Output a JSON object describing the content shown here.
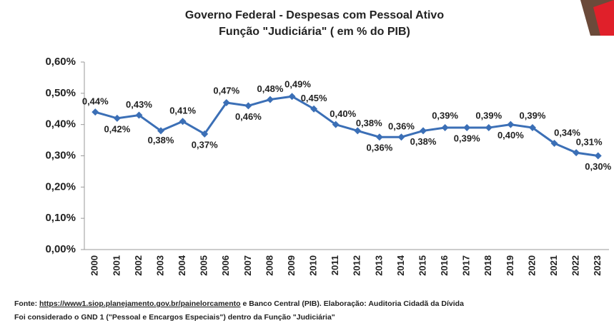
{
  "chart_data": {
    "type": "line",
    "title": "Governo Federal - Despesas com Pessoal Ativo",
    "subtitle": "Função \"Judiciária\" ( em % do PIB)",
    "categories": [
      "2000",
      "2001",
      "2002",
      "2003",
      "2004",
      "2005",
      "2006",
      "2007",
      "2008",
      "2009",
      "2010",
      "2011",
      "2012",
      "2013",
      "2014",
      "2015",
      "2016",
      "2017",
      "2018",
      "2019",
      "2020",
      "2021",
      "2022",
      "2023"
    ],
    "series": [
      {
        "color": "#3b6fb6",
        "values": [
          0.44,
          0.42,
          0.43,
          0.38,
          0.41,
          0.37,
          0.47,
          0.46,
          0.48,
          0.49,
          0.45,
          0.4,
          0.38,
          0.36,
          0.36,
          0.38,
          0.39,
          0.39,
          0.39,
          0.4,
          0.39,
          0.34,
          0.31,
          0.3
        ],
        "value_labels": [
          "0,44%",
          "0,42%",
          "0,43%",
          "0,38%",
          "0,41%",
          "0,37%",
          "0,47%",
          "0,46%",
          "0,48%",
          "0,49%",
          "0,45%",
          "0,40%",
          "0,38%",
          "0,36%",
          "0,36%",
          "0,38%",
          "0,39%",
          "0,39%",
          "0,39%",
          "0,40%",
          "0,39%",
          "0,34%",
          "0,31%",
          "0,30%"
        ]
      }
    ],
    "ylim": [
      0,
      0.6
    ],
    "yticks": [
      {
        "value": 0,
        "label": "0,00%"
      },
      {
        "value": 0.1,
        "label": "0,10%"
      },
      {
        "value": 0.2,
        "label": "0,20%"
      },
      {
        "value": 0.3,
        "label": "0,30%"
      },
      {
        "value": 0.4,
        "label": "0,40%"
      },
      {
        "value": 0.5,
        "label": "0,50%"
      },
      {
        "value": 0.6,
        "label": "0,60%"
      }
    ],
    "source_label": "Fonte:",
    "source_url": "https://www1.siop.planejamento.gov.br/painelorcamento",
    "source_rest": "e Banco Central (PIB). Elaboração: Auditoria Cidadã da Dívida",
    "note": "Foi considerado o GND 1 (\"Pessoal e Encargos Especiais\") dentro da Função \"Judiciária\""
  }
}
